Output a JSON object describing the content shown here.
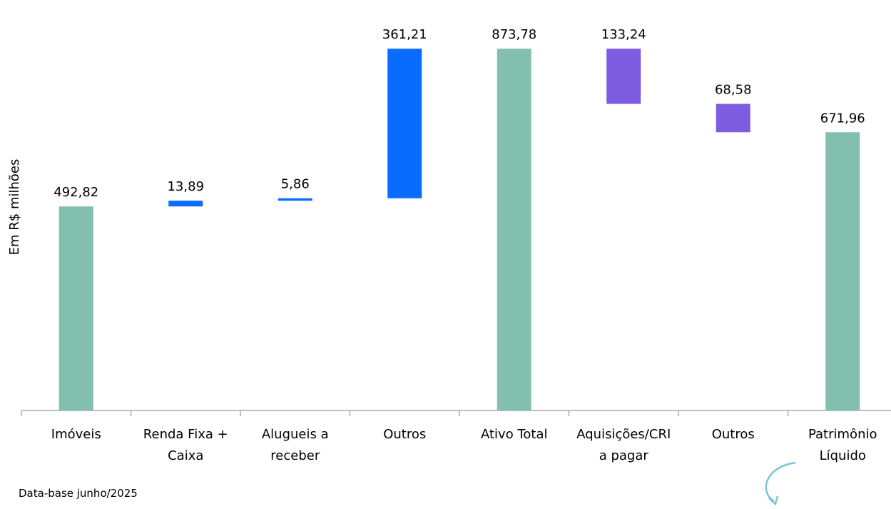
{
  "chart_data": {
    "type": "waterfall",
    "y_label": "Em R$ milhões",
    "footnote": "Data-base junho/2025",
    "categories": [
      "Imóveis",
      "Renda Fixa +\nCaixa",
      "Alugueis a\nreceber",
      "Outros",
      "Ativo Total",
      "Aquisições/CRI\na pagar",
      "Outros",
      "Patrimônio\nLíquido"
    ],
    "values": [
      492.82,
      13.89,
      5.86,
      361.21,
      873.78,
      133.24,
      68.58,
      671.96
    ],
    "value_labels": [
      "492,82",
      "13,89",
      "5,86",
      "361,21",
      "873,78",
      "133,24",
      "68,58",
      "671,96"
    ],
    "measures": [
      "total",
      "increase",
      "increase",
      "increase",
      "total",
      "decrease",
      "decrease",
      "total"
    ],
    "colors": {
      "total": "#82bfae",
      "increase": "#0a6cff",
      "decrease": "#7d5ce0"
    },
    "ylim": [
      0,
      900
    ]
  }
}
